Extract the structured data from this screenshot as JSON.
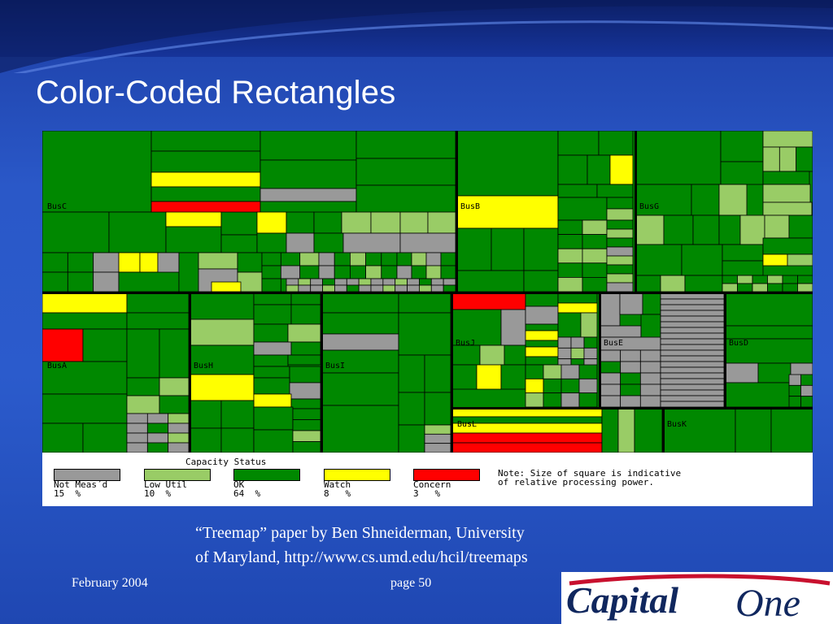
{
  "slide": {
    "title": "Color-Coded Rectangles",
    "caption_line1": "“Treemap” paper by Ben Shneiderman, University",
    "caption_line2": "of Maryland, http://www.cs.umd.edu/hcil/treemaps",
    "footer_date": "February 2004",
    "footer_page": "page 50",
    "logo_text_part1": "Capital",
    "logo_text_part2": "One"
  },
  "colors": {
    "not_measured": "#999999",
    "low_util": "#99cc66",
    "ok": "#008800",
    "watch": "#ffff00",
    "concern": "#ff0000"
  },
  "treemap": {
    "buses": [
      "BusC",
      "BusB",
      "BusG",
      "BusA",
      "BusH",
      "BusI",
      "BusJ",
      "BusE",
      "BusD",
      "BusL",
      "BusK"
    ]
  },
  "legend": {
    "title": "Capacity Status",
    "items": [
      {
        "label": "Not Meas´d",
        "value": "15  %"
      },
      {
        "label": "Low Util",
        "value": "10  %"
      },
      {
        "label": "OK",
        "value": "64  %"
      },
      {
        "label": "Watch",
        "value": "8   %"
      },
      {
        "label": "Concern",
        "value": "3   %"
      }
    ],
    "note_line1": "Note: Size of square is indicative",
    "note_line2": "of relative processing power."
  }
}
